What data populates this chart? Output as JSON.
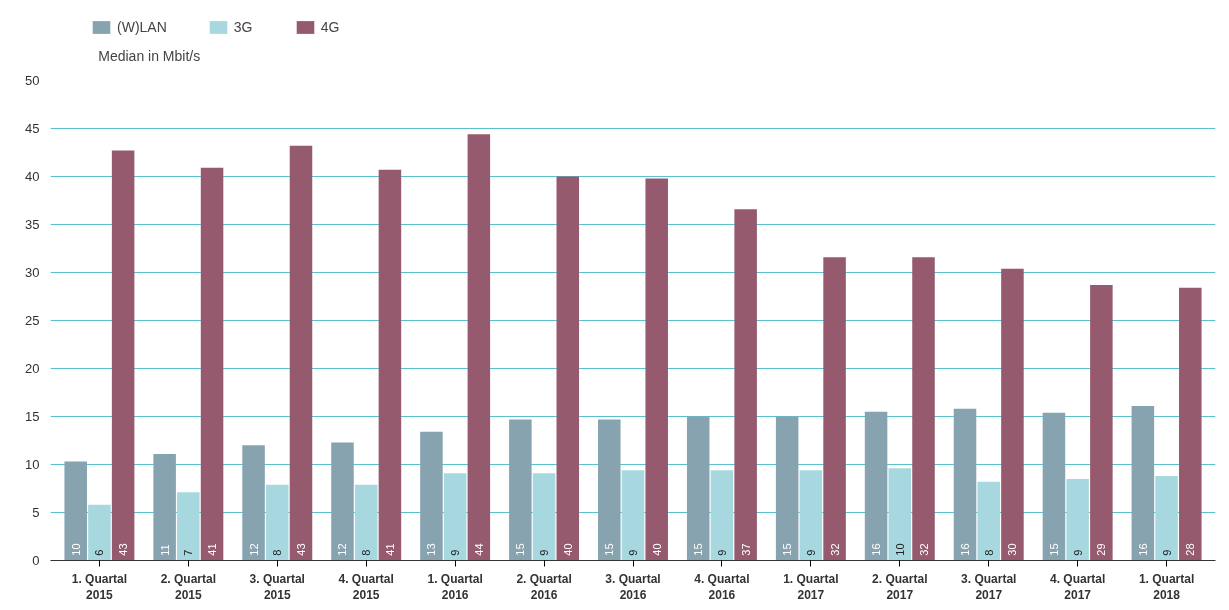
{
  "chart_data": {
    "type": "bar",
    "ylabel": "Median in Mbit/s",
    "categories": [
      "1. Quartal\n2015",
      "2. Quartal\n2015",
      "3. Quartal\n2015",
      "4. Quartal\n2015",
      "1. Quartal\n2016",
      "2. Quartal\n2016",
      "3. Quartal\n2016",
      "4. Quartal\n2016",
      "1. Quartal\n2017",
      "2. Quartal\n2017",
      "3. Quartal\n2017",
      "4. Quartal\n2017",
      "1. Quartal\n2018"
    ],
    "series": [
      {
        "name": "(W)LAN",
        "color": "#87a3b0",
        "values": [
          10.3,
          11.1,
          12.0,
          12.3,
          13.4,
          14.7,
          14.7,
          15.0,
          15.0,
          15.5,
          15.8,
          15.4,
          16.1
        ],
        "value_labels": [
          "10",
          "11",
          "12",
          "12",
          "13",
          "15",
          "15",
          "15",
          "15",
          "16",
          "16",
          "15",
          "16"
        ]
      },
      {
        "name": "3G",
        "color": "#a8d8df",
        "values": [
          5.8,
          7.1,
          7.9,
          7.9,
          9.1,
          9.1,
          9.4,
          9.4,
          9.4,
          9.6,
          8.2,
          8.5,
          8.8
        ],
        "value_labels": [
          "6",
          "7",
          "8",
          "8",
          "9",
          "9",
          "9",
          "9",
          "9",
          "10",
          "8",
          "9",
          "9"
        ]
      },
      {
        "name": "4G",
        "color": "#955a6e",
        "values": [
          42.7,
          40.9,
          43.2,
          40.7,
          44.4,
          40.0,
          39.8,
          36.6,
          31.6,
          31.6,
          30.4,
          28.7,
          28.4
        ],
        "value_labels": [
          "43",
          "41",
          "43",
          "41",
          "44",
          "40",
          "40",
          "37",
          "32",
          "32",
          "30",
          "29",
          "28"
        ]
      }
    ],
    "ylim": [
      0,
      50
    ],
    "yticks": [
      0,
      5,
      10,
      15,
      20,
      25,
      30,
      35,
      40,
      45,
      50
    ],
    "grid": "y",
    "legend": "top left"
  }
}
